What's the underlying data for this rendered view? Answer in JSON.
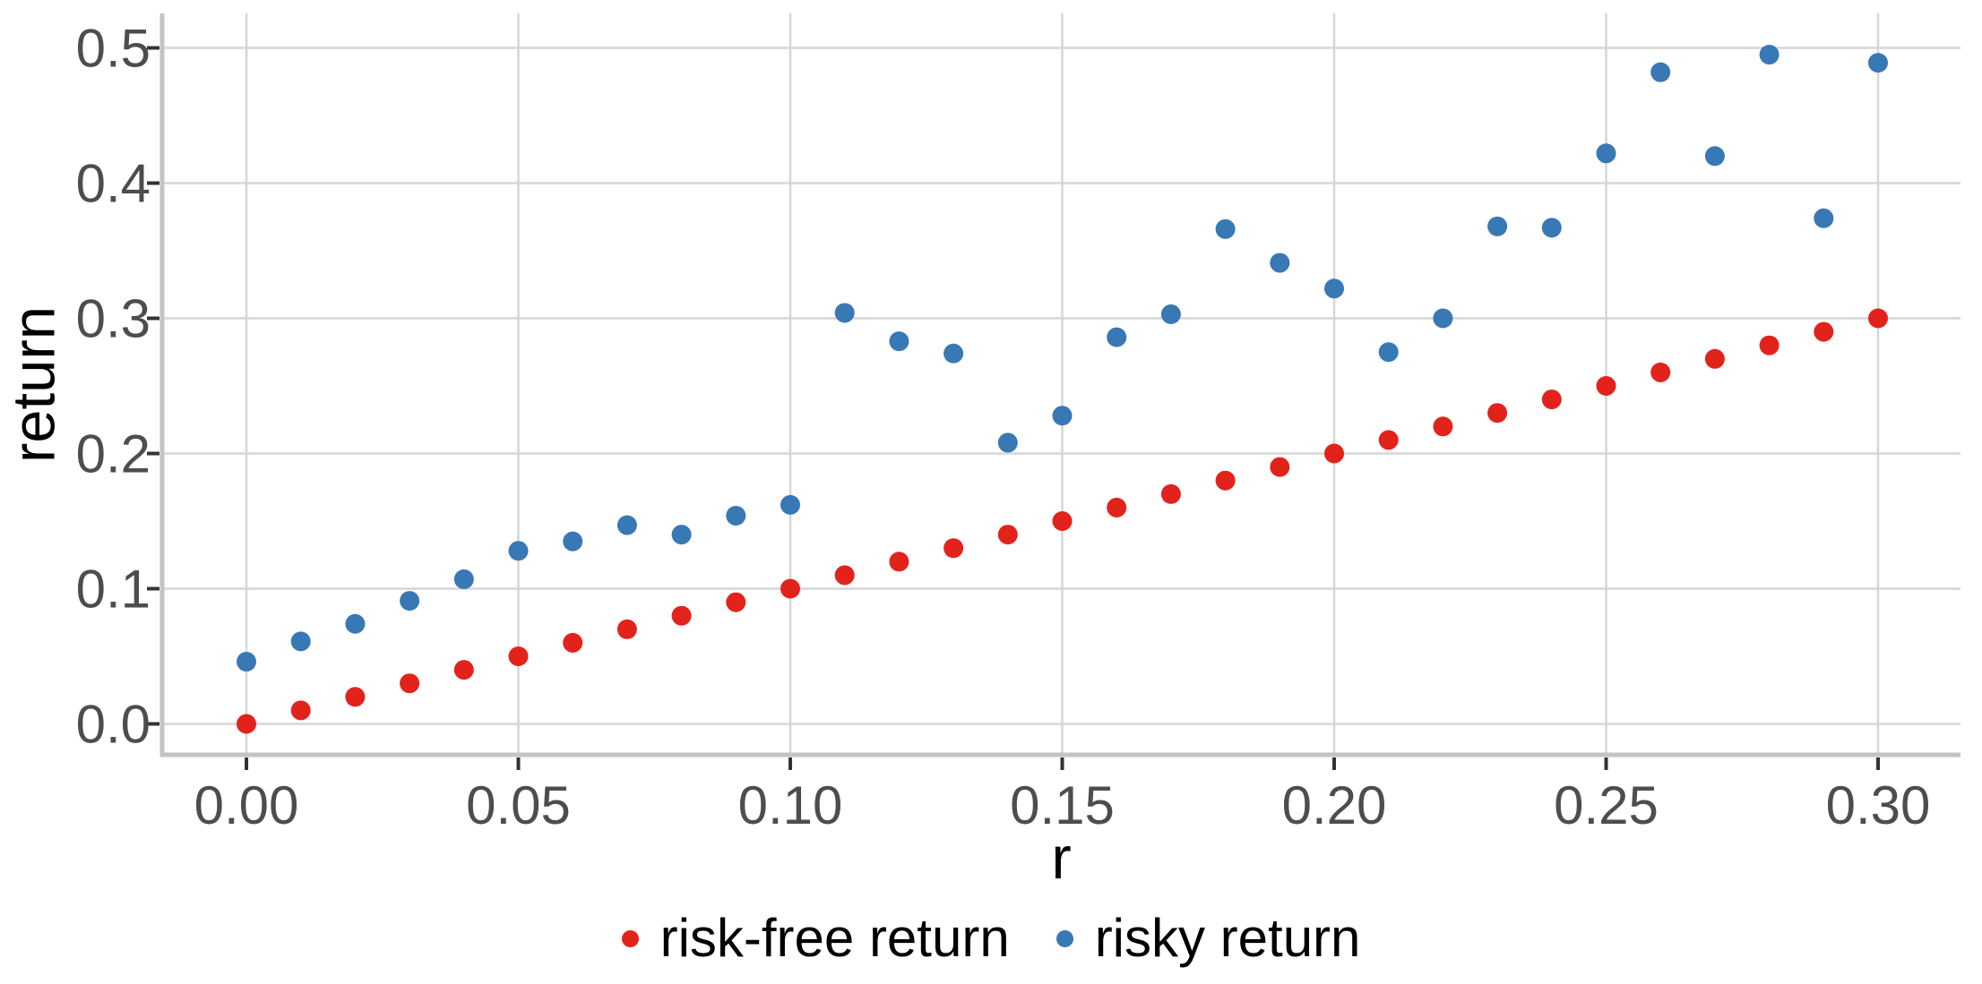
{
  "figure": {
    "background": "#ffffff",
    "panel_background": "#ffffff"
  },
  "chart_data": {
    "type": "scatter",
    "title": "",
    "xlabel": "r",
    "ylabel": "return",
    "grid": true,
    "legend_position": "bottom",
    "xlim": [
      -0.0155,
      0.3152
    ],
    "ylim": [
      -0.0228,
      0.5255
    ],
    "x_ticks": [
      "0.00",
      "0.05",
      "0.10",
      "0.15",
      "0.20",
      "0.25",
      "0.30"
    ],
    "y_ticks": [
      "0.0",
      "0.1",
      "0.2",
      "0.3",
      "0.4",
      "0.5"
    ],
    "x": [
      0.0,
      0.01,
      0.02,
      0.03,
      0.04,
      0.05,
      0.06,
      0.07,
      0.08,
      0.09,
      0.1,
      0.11,
      0.12,
      0.13,
      0.14,
      0.15,
      0.16,
      0.17,
      0.18,
      0.19,
      0.2,
      0.21,
      0.22,
      0.23,
      0.24,
      0.25,
      0.26,
      0.27,
      0.28,
      0.29,
      0.3
    ],
    "series": [
      {
        "name": "risk-free return",
        "color": "#E2231C",
        "values": [
          0.0,
          0.01,
          0.02,
          0.03,
          0.04,
          0.05,
          0.06,
          0.07,
          0.08,
          0.09,
          0.1,
          0.11,
          0.12,
          0.13,
          0.14,
          0.15,
          0.16,
          0.17,
          0.18,
          0.19,
          0.2,
          0.21,
          0.22,
          0.23,
          0.24,
          0.25,
          0.26,
          0.27,
          0.28,
          0.29,
          0.3
        ]
      },
      {
        "name": "risky return",
        "color": "#3878B4",
        "values": [
          0.046,
          0.061,
          0.074,
          0.091,
          0.107,
          0.128,
          0.135,
          0.147,
          0.14,
          0.154,
          0.162,
          0.304,
          0.283,
          0.274,
          0.208,
          0.228,
          0.286,
          0.303,
          0.366,
          0.341,
          0.322,
          0.275,
          0.3,
          0.368,
          0.367,
          0.422,
          0.482,
          0.42,
          0.495,
          0.374,
          0.489
        ]
      }
    ],
    "style": {
      "gridline_color": "#D6D6D6",
      "axis_line_color": "#C3C3C3",
      "tick_mark_color": "#333333",
      "tick_label_color": "#4D4D4D",
      "point_radius": 11,
      "legend_dot_colors": [
        "#E2231C",
        "#3878B4"
      ]
    }
  }
}
